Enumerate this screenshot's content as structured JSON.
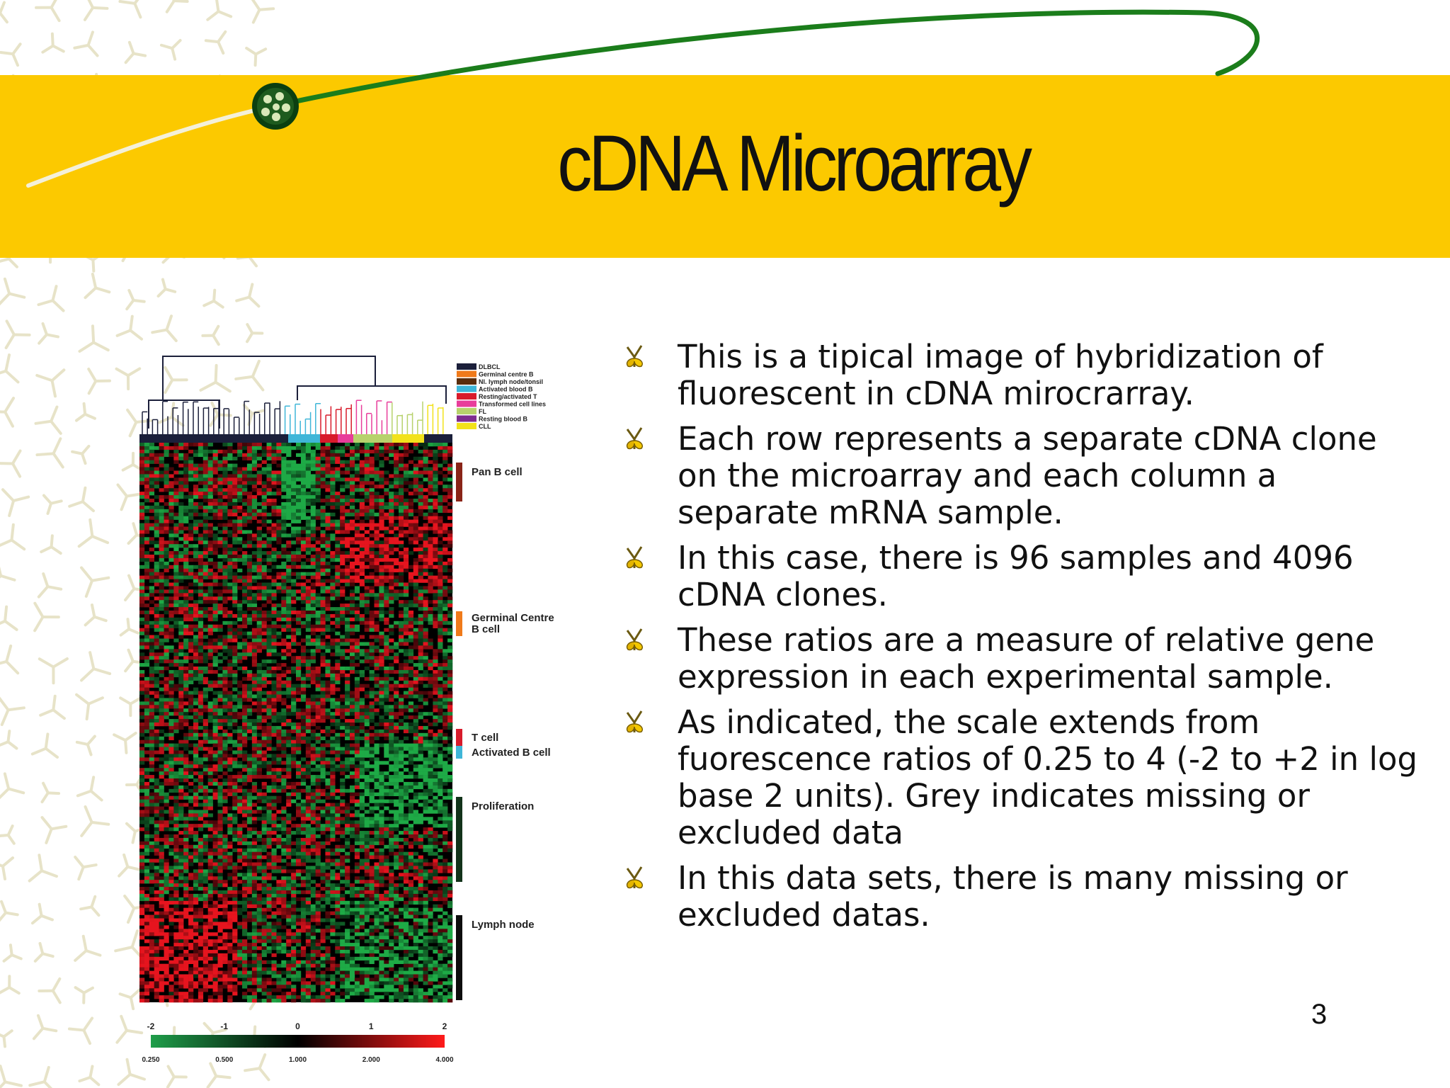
{
  "slide": {
    "title": "cDNA Microarray",
    "page_number": "3"
  },
  "figure": {
    "legend_items": [
      {
        "label": "DLBCL",
        "color": "#1b1f3a"
      },
      {
        "label": "Germinal centre B",
        "color": "#f07a1a"
      },
      {
        "label": "Nl. lymph node/tonsil",
        "color": "#5a2d0c"
      },
      {
        "label": "Activated blood B",
        "color": "#3fb6d8"
      },
      {
        "label": "Resting/activated T",
        "color": "#d81b2b"
      },
      {
        "label": "Transformed cell lines",
        "color": "#e83d9b"
      },
      {
        "label": "FL",
        "color": "#b7d26c"
      },
      {
        "label": "Resting blood B",
        "color": "#7e2d8f"
      },
      {
        "label": "CLL",
        "color": "#f2e21b"
      }
    ],
    "cluster_labels": [
      {
        "text": "Pan B cell",
        "color": "#8a2418"
      },
      {
        "text": "Germinal Centre",
        "text2": "B cell",
        "color": "#f07a1a"
      },
      {
        "text": "T cell",
        "color": "#d81b2b"
      },
      {
        "text": "Activated B cell",
        "color": "#3fb6d8"
      },
      {
        "text": "Proliferation",
        "color": "#12331a"
      },
      {
        "text": "Lymph node",
        "color": "#0d0d0d"
      }
    ],
    "scale_top_labels": [
      "-2",
      "-1",
      "0",
      "1",
      "2"
    ],
    "scale_bottom_labels": [
      "0.250",
      "0.500",
      "1.000",
      "2.000",
      "4.000"
    ],
    "colors": {
      "low": "#1f9e4a",
      "mid": "#000000",
      "high": "#ff1a1a"
    }
  },
  "bullets": [
    {
      "icon": "sprout-bullet-icon",
      "text": "This is a tipical image of hybridization of fluorescent in cDNA mirocrarray."
    },
    {
      "icon": "sprout-bullet-icon",
      "text": "Each row represents a separate cDNA clone on the microarray and each column a separate mRNA sample."
    },
    {
      "icon": "sprout-bullet-icon",
      "text": "In this case, there is 96 samples and 4096 cDNA clones."
    },
    {
      "icon": "sprout-bullet-icon",
      "text": "These ratios are a measure of relative gene expression in each experimental sample."
    },
    {
      "icon": "sprout-bullet-icon",
      "text": "As indicated, the scale extends from fuorescence ratios of 0.25 to 4 (-2 to +2 in log base 2 units). Grey indicates missing or excluded data"
    },
    {
      "icon": "sprout-bullet-icon",
      "text": "In this data sets, there is many missing or excluded datas."
    }
  ]
}
